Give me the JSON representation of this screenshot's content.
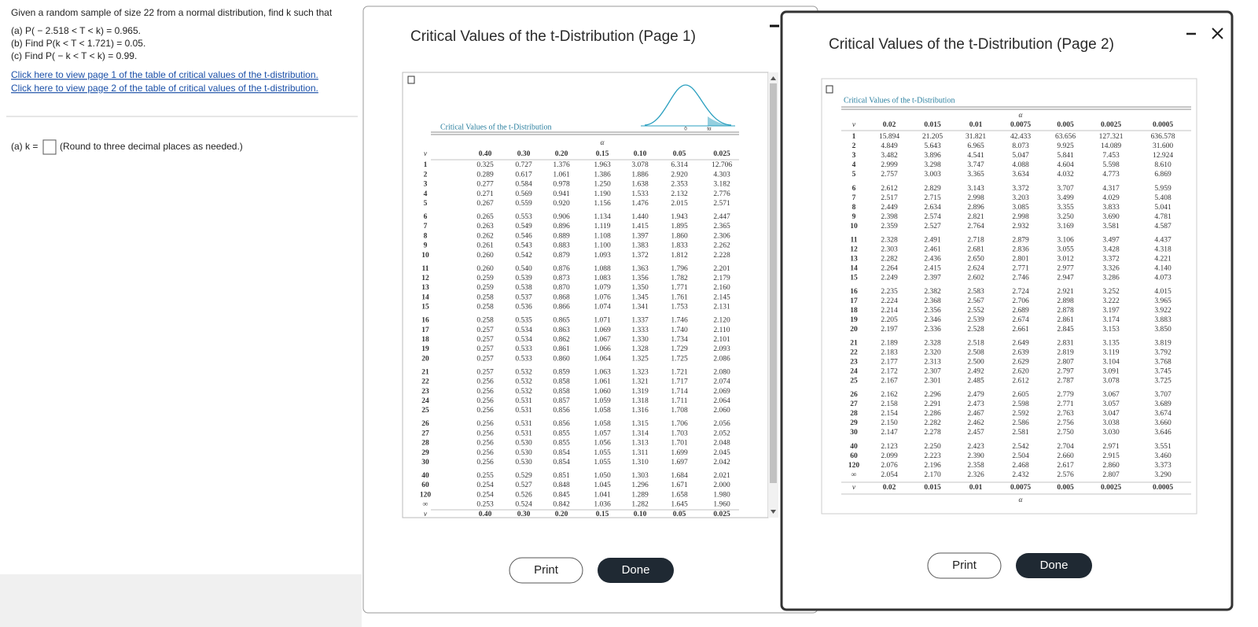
{
  "question": {
    "prompt": "Given a random sample of size 22 from a normal distribution, find k such that",
    "parts": [
      "(a) P( − 2.518 < T < k) = 0.965.",
      "(b) Find P(k < T < 1.721) = 0.05.",
      "(c) Find P( − k < T < k) = 0.99."
    ],
    "links": [
      "Click here to view page 1 of the table of critical values of the t-distribution.",
      "Click here to view page 2 of the table of critical values of the t-distribution."
    ],
    "answer_label": "(a) k =",
    "answer_hint": "(Round to three decimal places as needed.)"
  },
  "windows": [
    {
      "title": "Critical Values of the t-Distribution (Page 1)",
      "table": {
        "caption": "Critical Values of the t-Distribution",
        "alpha": "α",
        "df_label": "v",
        "curve_labels": [
          "0",
          "tα"
        ],
        "headers": [
          "0.40",
          "0.30",
          "0.20",
          "0.15",
          "0.10",
          "0.05",
          "0.025"
        ],
        "rows": [
          [
            "1",
            "0.325",
            "0.727",
            "1.376",
            "1.963",
            "3.078",
            "6.314",
            "12.706"
          ],
          [
            "2",
            "0.289",
            "0.617",
            "1.061",
            "1.386",
            "1.886",
            "2.920",
            "4.303"
          ],
          [
            "3",
            "0.277",
            "0.584",
            "0.978",
            "1.250",
            "1.638",
            "2.353",
            "3.182"
          ],
          [
            "4",
            "0.271",
            "0.569",
            "0.941",
            "1.190",
            "1.533",
            "2.132",
            "2.776"
          ],
          [
            "5",
            "0.267",
            "0.559",
            "0.920",
            "1.156",
            "1.476",
            "2.015",
            "2.571"
          ],
          [
            "6",
            "0.265",
            "0.553",
            "0.906",
            "1.134",
            "1.440",
            "1.943",
            "2.447"
          ],
          [
            "7",
            "0.263",
            "0.549",
            "0.896",
            "1.119",
            "1.415",
            "1.895",
            "2.365"
          ],
          [
            "8",
            "0.262",
            "0.546",
            "0.889",
            "1.108",
            "1.397",
            "1.860",
            "2.306"
          ],
          [
            "9",
            "0.261",
            "0.543",
            "0.883",
            "1.100",
            "1.383",
            "1.833",
            "2.262"
          ],
          [
            "10",
            "0.260",
            "0.542",
            "0.879",
            "1.093",
            "1.372",
            "1.812",
            "2.228"
          ],
          [
            "11",
            "0.260",
            "0.540",
            "0.876",
            "1.088",
            "1.363",
            "1.796",
            "2.201"
          ],
          [
            "12",
            "0.259",
            "0.539",
            "0.873",
            "1.083",
            "1.356",
            "1.782",
            "2.179"
          ],
          [
            "13",
            "0.259",
            "0.538",
            "0.870",
            "1.079",
            "1.350",
            "1.771",
            "2.160"
          ],
          [
            "14",
            "0.258",
            "0.537",
            "0.868",
            "1.076",
            "1.345",
            "1.761",
            "2.145"
          ],
          [
            "15",
            "0.258",
            "0.536",
            "0.866",
            "1.074",
            "1.341",
            "1.753",
            "2.131"
          ],
          [
            "16",
            "0.258",
            "0.535",
            "0.865",
            "1.071",
            "1.337",
            "1.746",
            "2.120"
          ],
          [
            "17",
            "0.257",
            "0.534",
            "0.863",
            "1.069",
            "1.333",
            "1.740",
            "2.110"
          ],
          [
            "18",
            "0.257",
            "0.534",
            "0.862",
            "1.067",
            "1.330",
            "1.734",
            "2.101"
          ],
          [
            "19",
            "0.257",
            "0.533",
            "0.861",
            "1.066",
            "1.328",
            "1.729",
            "2.093"
          ],
          [
            "20",
            "0.257",
            "0.533",
            "0.860",
            "1.064",
            "1.325",
            "1.725",
            "2.086"
          ],
          [
            "21",
            "0.257",
            "0.532",
            "0.859",
            "1.063",
            "1.323",
            "1.721",
            "2.080"
          ],
          [
            "22",
            "0.256",
            "0.532",
            "0.858",
            "1.061",
            "1.321",
            "1.717",
            "2.074"
          ],
          [
            "23",
            "0.256",
            "0.532",
            "0.858",
            "1.060",
            "1.319",
            "1.714",
            "2.069"
          ],
          [
            "24",
            "0.256",
            "0.531",
            "0.857",
            "1.059",
            "1.318",
            "1.711",
            "2.064"
          ],
          [
            "25",
            "0.256",
            "0.531",
            "0.856",
            "1.058",
            "1.316",
            "1.708",
            "2.060"
          ],
          [
            "26",
            "0.256",
            "0.531",
            "0.856",
            "1.058",
            "1.315",
            "1.706",
            "2.056"
          ],
          [
            "27",
            "0.256",
            "0.531",
            "0.855",
            "1.057",
            "1.314",
            "1.703",
            "2.052"
          ],
          [
            "28",
            "0.256",
            "0.530",
            "0.855",
            "1.056",
            "1.313",
            "1.701",
            "2.048"
          ],
          [
            "29",
            "0.256",
            "0.530",
            "0.854",
            "1.055",
            "1.311",
            "1.699",
            "2.045"
          ],
          [
            "30",
            "0.256",
            "0.530",
            "0.854",
            "1.055",
            "1.310",
            "1.697",
            "2.042"
          ],
          [
            "40",
            "0.255",
            "0.529",
            "0.851",
            "1.050",
            "1.303",
            "1.684",
            "2.021"
          ],
          [
            "60",
            "0.254",
            "0.527",
            "0.848",
            "1.045",
            "1.296",
            "1.671",
            "2.000"
          ],
          [
            "120",
            "0.254",
            "0.526",
            "0.845",
            "1.041",
            "1.289",
            "1.658",
            "1.980"
          ],
          [
            "∞",
            "0.253",
            "0.524",
            "0.842",
            "1.036",
            "1.282",
            "1.645",
            "1.960"
          ]
        ]
      },
      "buttons": [
        "Print",
        "Done"
      ]
    },
    {
      "title": "Critical Values of the t-Distribution (Page 2)",
      "table": {
        "caption": "Critical Values of the t-Distribution",
        "alpha": "α",
        "df_label": "v",
        "headers": [
          "0.02",
          "0.015",
          "0.01",
          "0.0075",
          "0.005",
          "0.0025",
          "0.0005"
        ],
        "rows": [
          [
            "1",
            "15.894",
            "21.205",
            "31.821",
            "42.433",
            "63.656",
            "127.321",
            "636.578"
          ],
          [
            "2",
            "4.849",
            "5.643",
            "6.965",
            "8.073",
            "9.925",
            "14.089",
            "31.600"
          ],
          [
            "3",
            "3.482",
            "3.896",
            "4.541",
            "5.047",
            "5.841",
            "7.453",
            "12.924"
          ],
          [
            "4",
            "2.999",
            "3.298",
            "3.747",
            "4.088",
            "4.604",
            "5.598",
            "8.610"
          ],
          [
            "5",
            "2.757",
            "3.003",
            "3.365",
            "3.634",
            "4.032",
            "4.773",
            "6.869"
          ],
          [
            "6",
            "2.612",
            "2.829",
            "3.143",
            "3.372",
            "3.707",
            "4.317",
            "5.959"
          ],
          [
            "7",
            "2.517",
            "2.715",
            "2.998",
            "3.203",
            "3.499",
            "4.029",
            "5.408"
          ],
          [
            "8",
            "2.449",
            "2.634",
            "2.896",
            "3.085",
            "3.355",
            "3.833",
            "5.041"
          ],
          [
            "9",
            "2.398",
            "2.574",
            "2.821",
            "2.998",
            "3.250",
            "3.690",
            "4.781"
          ],
          [
            "10",
            "2.359",
            "2.527",
            "2.764",
            "2.932",
            "3.169",
            "3.581",
            "4.587"
          ],
          [
            "11",
            "2.328",
            "2.491",
            "2.718",
            "2.879",
            "3.106",
            "3.497",
            "4.437"
          ],
          [
            "12",
            "2.303",
            "2.461",
            "2.681",
            "2.836",
            "3.055",
            "3.428",
            "4.318"
          ],
          [
            "13",
            "2.282",
            "2.436",
            "2.650",
            "2.801",
            "3.012",
            "3.372",
            "4.221"
          ],
          [
            "14",
            "2.264",
            "2.415",
            "2.624",
            "2.771",
            "2.977",
            "3.326",
            "4.140"
          ],
          [
            "15",
            "2.249",
            "2.397",
            "2.602",
            "2.746",
            "2.947",
            "3.286",
            "4.073"
          ],
          [
            "16",
            "2.235",
            "2.382",
            "2.583",
            "2.724",
            "2.921",
            "3.252",
            "4.015"
          ],
          [
            "17",
            "2.224",
            "2.368",
            "2.567",
            "2.706",
            "2.898",
            "3.222",
            "3.965"
          ],
          [
            "18",
            "2.214",
            "2.356",
            "2.552",
            "2.689",
            "2.878",
            "3.197",
            "3.922"
          ],
          [
            "19",
            "2.205",
            "2.346",
            "2.539",
            "2.674",
            "2.861",
            "3.174",
            "3.883"
          ],
          [
            "20",
            "2.197",
            "2.336",
            "2.528",
            "2.661",
            "2.845",
            "3.153",
            "3.850"
          ],
          [
            "21",
            "2.189",
            "2.328",
            "2.518",
            "2.649",
            "2.831",
            "3.135",
            "3.819"
          ],
          [
            "22",
            "2.183",
            "2.320",
            "2.508",
            "2.639",
            "2.819",
            "3.119",
            "3.792"
          ],
          [
            "23",
            "2.177",
            "2.313",
            "2.500",
            "2.629",
            "2.807",
            "3.104",
            "3.768"
          ],
          [
            "24",
            "2.172",
            "2.307",
            "2.492",
            "2.620",
            "2.797",
            "3.091",
            "3.745"
          ],
          [
            "25",
            "2.167",
            "2.301",
            "2.485",
            "2.612",
            "2.787",
            "3.078",
            "3.725"
          ],
          [
            "26",
            "2.162",
            "2.296",
            "2.479",
            "2.605",
            "2.779",
            "3.067",
            "3.707"
          ],
          [
            "27",
            "2.158",
            "2.291",
            "2.473",
            "2.598",
            "2.771",
            "3.057",
            "3.689"
          ],
          [
            "28",
            "2.154",
            "2.286",
            "2.467",
            "2.592",
            "2.763",
            "3.047",
            "3.674"
          ],
          [
            "29",
            "2.150",
            "2.282",
            "2.462",
            "2.586",
            "2.756",
            "3.038",
            "3.660"
          ],
          [
            "30",
            "2.147",
            "2.278",
            "2.457",
            "2.581",
            "2.750",
            "3.030",
            "3.646"
          ],
          [
            "40",
            "2.123",
            "2.250",
            "2.423",
            "2.542",
            "2.704",
            "2.971",
            "3.551"
          ],
          [
            "60",
            "2.099",
            "2.223",
            "2.390",
            "2.504",
            "2.660",
            "2.915",
            "3.460"
          ],
          [
            "120",
            "2.076",
            "2.196",
            "2.358",
            "2.468",
            "2.617",
            "2.860",
            "3.373"
          ],
          [
            "∞",
            "2.054",
            "2.170",
            "2.326",
            "2.432",
            "2.576",
            "2.807",
            "3.290"
          ]
        ]
      },
      "buttons": [
        "Print",
        "Done"
      ]
    }
  ]
}
